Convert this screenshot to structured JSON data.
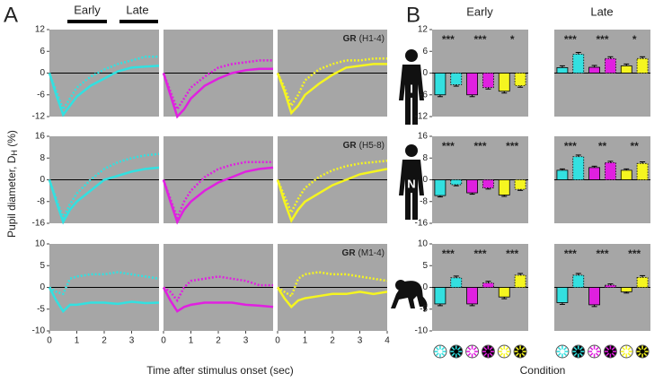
{
  "figure": {
    "panel_a": "A",
    "panel_b": "B",
    "period_early": "Early",
    "period_late": "Late",
    "col_early": "Early",
    "col_late": "Late",
    "ylabel": "Pupil diameter, D",
    "ylabel_sub": "H",
    "ylabel_unit": " (%)",
    "xlabel": "Time after stimulus onset (sec)",
    "condition": "Condition",
    "rows": [
      {
        "bold": "GR",
        "text": "(H1-4)",
        "subject": "I"
      },
      {
        "bold": "GR",
        "text": "(H5-8)",
        "subject": "N"
      },
      {
        "bold": "GR",
        "text": "(M1-4)"
      }
    ]
  },
  "chart_data": [
    {
      "type": "line",
      "x": [
        0,
        0.25,
        0.5,
        0.75,
        1,
        1.5,
        2,
        2.5,
        3,
        3.5,
        4
      ],
      "xlim": [
        0,
        4
      ],
      "ylim": [
        -12,
        12
      ],
      "yticks": [
        -12,
        -6,
        0,
        6,
        12
      ],
      "series": [
        {
          "color": "#33e0e0",
          "style": "solid",
          "values": [
            0,
            -6,
            -11.5,
            -9,
            -6.5,
            -3.5,
            -1.5,
            0.5,
            1.5,
            1.8,
            2
          ]
        },
        {
          "color": "#33e0e0",
          "style": "dotted",
          "values": [
            0,
            -5,
            -10,
            -7,
            -4,
            -1,
            1,
            2.5,
            3.5,
            4.5,
            4.5
          ]
        }
      ]
    },
    {
      "type": "line",
      "x": [
        0,
        0.25,
        0.5,
        0.75,
        1,
        1.5,
        2,
        2.5,
        3,
        3.5,
        4
      ],
      "xlim": [
        0,
        4
      ],
      "ylim": [
        -12,
        12
      ],
      "series": [
        {
          "color": "#e020e0",
          "style": "solid",
          "values": [
            0,
            -6,
            -12,
            -10,
            -7,
            -3.5,
            -1.5,
            0,
            0.8,
            1.2,
            1.2
          ]
        },
        {
          "color": "#e020e0",
          "style": "dotted",
          "values": [
            0,
            -5,
            -10,
            -7,
            -4,
            -1,
            1.5,
            2.5,
            3,
            3.5,
            3.5
          ]
        }
      ]
    },
    {
      "type": "line",
      "x": [
        0,
        0.25,
        0.5,
        0.75,
        1,
        1.5,
        2,
        2.5,
        3,
        3.5,
        4
      ],
      "xlim": [
        0,
        4
      ],
      "ylim": [
        -12,
        12
      ],
      "series": [
        {
          "color": "#f5f520",
          "style": "solid",
          "values": [
            0,
            -5,
            -11,
            -9,
            -6,
            -3,
            -0.5,
            1.5,
            2,
            2.5,
            2.5
          ]
        },
        {
          "color": "#f5f520",
          "style": "dotted",
          "values": [
            0,
            -4,
            -9,
            -6,
            -2,
            1,
            2.5,
            3.5,
            3.5,
            4,
            4
          ]
        }
      ]
    },
    {
      "type": "line",
      "x": [
        0,
        0.25,
        0.5,
        0.75,
        1,
        1.5,
        2,
        2.5,
        3,
        3.5,
        4
      ],
      "xlim": [
        0,
        4
      ],
      "ylim": [
        -16,
        16
      ],
      "yticks": [
        -16,
        -8,
        0,
        8,
        16
      ],
      "series": [
        {
          "color": "#33e0e0",
          "style": "solid",
          "values": [
            0,
            -8,
            -15.5,
            -11,
            -8,
            -4,
            0,
            1.5,
            3,
            4,
            4.5
          ]
        },
        {
          "color": "#33e0e0",
          "style": "dotted",
          "values": [
            0,
            -7,
            -14,
            -9,
            -5,
            0,
            4,
            6.5,
            8,
            9,
            9.5
          ]
        }
      ]
    },
    {
      "type": "line",
      "x": [
        0,
        0.25,
        0.5,
        0.75,
        1,
        1.5,
        2,
        2.5,
        3,
        3.5,
        4
      ],
      "xlim": [
        0,
        4
      ],
      "ylim": [
        -16,
        16
      ],
      "series": [
        {
          "color": "#e020e0",
          "style": "solid",
          "values": [
            0,
            -8,
            -15.5,
            -11,
            -8,
            -4,
            -1,
            1,
            3,
            4,
            4.5
          ]
        },
        {
          "color": "#e020e0",
          "style": "dotted",
          "values": [
            0,
            -7,
            -14,
            -8,
            -4,
            1,
            4,
            5.5,
            6.5,
            6.5,
            6.5
          ]
        }
      ]
    },
    {
      "type": "line",
      "x": [
        0,
        0.25,
        0.5,
        0.75,
        1,
        1.5,
        2,
        2.5,
        3,
        3.5,
        4
      ],
      "xlim": [
        0,
        4
      ],
      "ylim": [
        -16,
        16
      ],
      "series": [
        {
          "color": "#f5f520",
          "style": "solid",
          "values": [
            0,
            -8,
            -15,
            -11,
            -8,
            -5,
            -2,
            0,
            2,
            3,
            4
          ]
        },
        {
          "color": "#f5f520",
          "style": "dotted",
          "values": [
            0,
            -6,
            -12,
            -7,
            -3,
            1,
            3.5,
            5,
            6,
            6.5,
            7
          ]
        }
      ]
    },
    {
      "type": "line",
      "x": [
        0,
        0.25,
        0.5,
        0.75,
        1,
        1.5,
        2,
        2.5,
        3,
        3.5,
        4
      ],
      "xlim": [
        0,
        4
      ],
      "ylim": [
        -10,
        10
      ],
      "yticks": [
        -10,
        -5,
        0,
        5,
        10
      ],
      "xticks": [
        0,
        1,
        2,
        3
      ],
      "series": [
        {
          "color": "#33e0e0",
          "style": "solid",
          "values": [
            0,
            -3,
            -5.5,
            -4,
            -4,
            -3.5,
            -3.5,
            -3.8,
            -3.3,
            -3.6,
            -3.5
          ]
        },
        {
          "color": "#33e0e0",
          "style": "dotted",
          "values": [
            0,
            -1,
            -1.5,
            2,
            2.5,
            3,
            3,
            3.5,
            3,
            2.5,
            2
          ]
        }
      ]
    },
    {
      "type": "line",
      "x": [
        0,
        0.25,
        0.5,
        0.75,
        1,
        1.5,
        2,
        2.5,
        3,
        3.5,
        4
      ],
      "xlim": [
        0,
        4
      ],
      "ylim": [
        -10,
        10
      ],
      "xticks": [
        0,
        1,
        2,
        3
      ],
      "series": [
        {
          "color": "#e020e0",
          "style": "solid",
          "values": [
            0,
            -3,
            -5.5,
            -4.5,
            -4,
            -3.5,
            -3.5,
            -3.5,
            -4,
            -4.2,
            -4.5
          ]
        },
        {
          "color": "#e020e0",
          "style": "dotted",
          "values": [
            0,
            -1,
            -3,
            0,
            1.5,
            2,
            2.5,
            2,
            1.5,
            0.5,
            0.5
          ]
        }
      ]
    },
    {
      "type": "line",
      "x": [
        0,
        0.25,
        0.5,
        0.75,
        1,
        1.5,
        2,
        2.5,
        3,
        3.5,
        4
      ],
      "xlim": [
        0,
        4
      ],
      "ylim": [
        -10,
        10
      ],
      "xticks": [
        0,
        1,
        2,
        3,
        4
      ],
      "series": [
        {
          "color": "#f5f520",
          "style": "solid",
          "values": [
            0,
            -2.5,
            -4.5,
            -3,
            -2.5,
            -2,
            -1.5,
            -1.5,
            -1,
            -1.5,
            -1
          ]
        },
        {
          "color": "#f5f520",
          "style": "dotted",
          "values": [
            0,
            -1,
            -2,
            2,
            3,
            3.5,
            3,
            3,
            2.5,
            2,
            1.5
          ]
        }
      ]
    },
    {
      "type": "bar",
      "ylim": [
        -12,
        12
      ],
      "yticks": [
        -12,
        -6,
        0,
        6,
        12
      ],
      "colors": [
        "#33e0e0",
        "#33e0e0",
        "#e020e0",
        "#e020e0",
        "#f5f520",
        "#f5f520"
      ],
      "styles": [
        "solid",
        "dotted",
        "solid",
        "dotted",
        "solid",
        "dotted"
      ],
      "values": [
        -6,
        -3.2,
        -6,
        -4,
        -5,
        -3.5
      ],
      "errors": [
        0.5,
        0.4,
        0.5,
        0.4,
        0.5,
        0.4
      ],
      "annotations": [
        "***",
        "***",
        "*"
      ]
    },
    {
      "type": "bar",
      "ylim": [
        -12,
        12
      ],
      "colors": [
        "#33e0e0",
        "#33e0e0",
        "#e020e0",
        "#e020e0",
        "#f5f520",
        "#f5f520"
      ],
      "styles": [
        "solid",
        "dotted",
        "solid",
        "dotted",
        "solid",
        "dotted"
      ],
      "values": [
        1.5,
        5.2,
        1.6,
        4,
        2,
        4
      ],
      "errors": [
        0.5,
        0.5,
        0.5,
        0.5,
        0.5,
        0.5
      ],
      "annotations": [
        "***",
        "***",
        "*"
      ]
    },
    {
      "type": "bar",
      "ylim": [
        -16,
        16
      ],
      "yticks": [
        -16,
        -8,
        0,
        8,
        16
      ],
      "colors": [
        "#33e0e0",
        "#33e0e0",
        "#e020e0",
        "#e020e0",
        "#f5f520",
        "#f5f520"
      ],
      "styles": [
        "solid",
        "dotted",
        "solid",
        "dotted",
        "solid",
        "dotted"
      ],
      "values": [
        -5.8,
        -1.8,
        -4.8,
        -3,
        -5.6,
        -3.5
      ],
      "errors": [
        0.5,
        0.4,
        0.5,
        0.4,
        0.5,
        0.4
      ],
      "annotations": [
        "***",
        "***",
        "***"
      ]
    },
    {
      "type": "bar",
      "ylim": [
        -16,
        16
      ],
      "colors": [
        "#33e0e0",
        "#33e0e0",
        "#e020e0",
        "#e020e0",
        "#f5f520",
        "#f5f520"
      ],
      "styles": [
        "solid",
        "dotted",
        "solid",
        "dotted",
        "solid",
        "dotted"
      ],
      "values": [
        3.5,
        8.5,
        4.5,
        6.3,
        3.5,
        6
      ],
      "errors": [
        0.5,
        0.6,
        0.5,
        0.5,
        0.5,
        0.6
      ],
      "annotations": [
        "***",
        "**",
        "**"
      ]
    },
    {
      "type": "bar",
      "ylim": [
        -10,
        10
      ],
      "yticks": [
        -10,
        -5,
        0,
        5,
        10
      ],
      "colors": [
        "#33e0e0",
        "#33e0e0",
        "#e020e0",
        "#e020e0",
        "#f5f520",
        "#f5f520"
      ],
      "styles": [
        "solid",
        "dotted",
        "solid",
        "dotted",
        "solid",
        "dotted"
      ],
      "values": [
        -3.8,
        2.2,
        -3.8,
        1,
        -2.2,
        2.8
      ],
      "errors": [
        0.4,
        0.4,
        0.4,
        0.4,
        0.4,
        0.4
      ],
      "annotations": [
        "***",
        "***",
        "***"
      ]
    },
    {
      "type": "bar",
      "ylim": [
        -10,
        10
      ],
      "colors": [
        "#33e0e0",
        "#33e0e0",
        "#e020e0",
        "#e020e0",
        "#f5f520",
        "#f5f520"
      ],
      "styles": [
        "solid",
        "dotted",
        "solid",
        "dotted",
        "solid",
        "dotted"
      ],
      "values": [
        -3.5,
        2.8,
        -4,
        0.5,
        -1,
        2.3
      ],
      "errors": [
        0.4,
        0.4,
        0.4,
        0.3,
        0.3,
        0.4
      ],
      "annotations": [
        "***",
        "***",
        "***"
      ]
    }
  ]
}
